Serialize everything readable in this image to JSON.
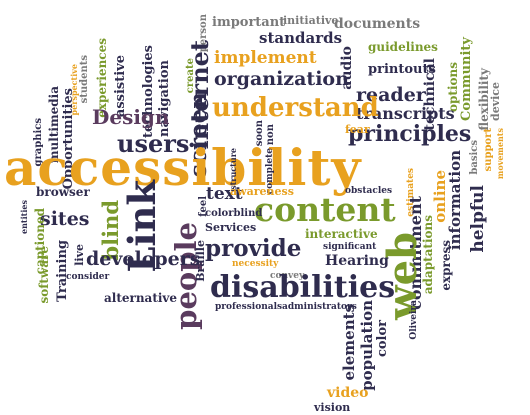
{
  "word_cloud": {
    "colors": {
      "dark": "#2f2c4e",
      "gray": "#7a7a7a",
      "orange": "#e8a11f",
      "green": "#7a9a2c",
      "purple": "#5a3b5e",
      "background": "#ffffff"
    },
    "words": [
      "important",
      "initiative",
      "documents",
      "person",
      "standards",
      "guidelines",
      "perspective",
      "students",
      "experiences",
      "create",
      "implement",
      "printouts",
      "technical",
      "options",
      "Community",
      "flexibility",
      "device",
      "multimedia",
      "Opportunities",
      "assistive",
      "technologies",
      "navigation",
      "graphics",
      "internet",
      "organization",
      "audio",
      "reader",
      "transcripts",
      "Design",
      "understand",
      "basics",
      "support",
      "movements",
      "users",
      "screen",
      "soon",
      "non",
      "principles",
      "fear",
      "accessibility",
      "structure",
      "complete",
      "estimates",
      "adaptations",
      "online",
      "information",
      "helpful",
      "express",
      "browser",
      "people",
      "content",
      "Link",
      "text",
      "awareness",
      "obstacles",
      "feel",
      "entities",
      "sites",
      "captioned",
      "blind",
      "colorblind",
      "Services",
      "commitment",
      "interactive",
      "provide",
      "web",
      "significant",
      "Training",
      "software",
      "live",
      "developers",
      "Braille",
      "necessity",
      "Hearing",
      "Oliveira",
      "convey",
      "disabilities",
      "consider",
      "alternative",
      "elements",
      "population",
      "color",
      "professionals",
      "administrators",
      "video",
      "vision"
    ]
  }
}
